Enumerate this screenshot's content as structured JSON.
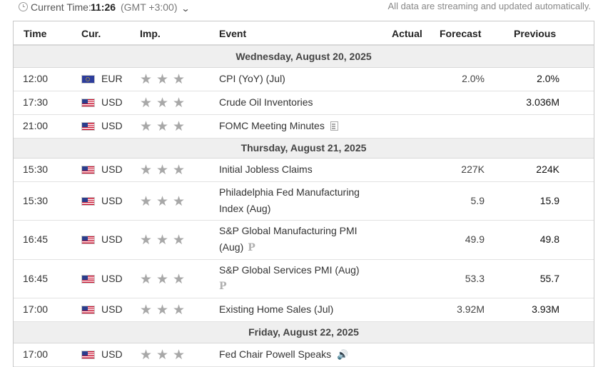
{
  "header": {
    "current_time_label": "Current Time:",
    "current_time_value": "11:26",
    "timezone": "(GMT +3:00)",
    "notice": "All data are streaming and updated automatically."
  },
  "columns": {
    "time": "Time",
    "currency": "Cur.",
    "importance": "Imp.",
    "event": "Event",
    "actual": "Actual",
    "forecast": "Forecast",
    "previous": "Previous"
  },
  "days": [
    {
      "label": "Wednesday, August 20, 2025",
      "events": [
        {
          "time": "12:00",
          "flag": "eu-flag",
          "currency": "EUR",
          "importance": 3,
          "event": "CPI (YoY) (Jul)",
          "actual": "",
          "forecast": "2.0%",
          "previous": "2.0%",
          "icon": ""
        },
        {
          "time": "17:30",
          "flag": "us-flag",
          "currency": "USD",
          "importance": 3,
          "event": "Crude Oil Inventories",
          "actual": "",
          "forecast": "",
          "previous": "3.036M",
          "icon": ""
        },
        {
          "time": "21:00",
          "flag": "us-flag",
          "currency": "USD",
          "importance": 3,
          "event": "FOMC Meeting Minutes",
          "actual": "",
          "forecast": "",
          "previous": "",
          "icon": "document-icon"
        }
      ]
    },
    {
      "label": "Thursday, August 21, 2025",
      "events": [
        {
          "time": "15:30",
          "flag": "us-flag",
          "currency": "USD",
          "importance": 3,
          "event": "Initial Jobless Claims",
          "actual": "",
          "forecast": "227K",
          "previous": "224K",
          "icon": ""
        },
        {
          "time": "15:30",
          "flag": "us-flag",
          "currency": "USD",
          "importance": 3,
          "event": "Philadelphia Fed Manufacturing Index (Aug)",
          "actual": "",
          "forecast": "5.9",
          "previous": "15.9",
          "icon": ""
        },
        {
          "time": "16:45",
          "flag": "us-flag",
          "currency": "USD",
          "importance": 3,
          "event": "S&P Global Manufacturing PMI (Aug)",
          "actual": "",
          "forecast": "49.9",
          "previous": "49.8",
          "icon": "preliminary-icon"
        },
        {
          "time": "16:45",
          "flag": "us-flag",
          "currency": "USD",
          "importance": 3,
          "event": "S&P Global Services PMI (Aug)",
          "actual": "",
          "forecast": "53.3",
          "previous": "55.7",
          "icon": "preliminary-icon"
        },
        {
          "time": "17:00",
          "flag": "us-flag",
          "currency": "USD",
          "importance": 3,
          "event": "Existing Home Sales (Jul)",
          "actual": "",
          "forecast": "3.92M",
          "previous": "3.93M",
          "icon": ""
        }
      ]
    },
    {
      "label": "Friday, August 22, 2025",
      "events": [
        {
          "time": "17:00",
          "flag": "us-flag",
          "currency": "USD",
          "importance": 3,
          "event": "Fed Chair Powell Speaks",
          "actual": "",
          "forecast": "",
          "previous": "",
          "icon": "speaker-icon"
        }
      ]
    }
  ],
  "icons": {
    "preliminary_glyph": "P",
    "speaker_glyph": "🔊"
  },
  "colors": {
    "importance_star": "#a8a8a8",
    "day_header_bg": "#efefef"
  }
}
